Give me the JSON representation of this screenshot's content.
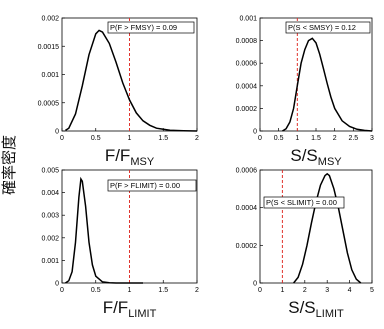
{
  "y_axis_label": "確率密度",
  "chart_data": [
    {
      "type": "line",
      "title": "",
      "xlabel_main": "F/F",
      "xlabel_sub": "MSY",
      "xlim": [
        0,
        2
      ],
      "ylim": [
        0,
        0.002
      ],
      "x_ticks": [
        "0",
        "0.5",
        "1",
        "1.5",
        "2"
      ],
      "y_ticks": [
        "0",
        "0.0005",
        "0.001",
        "0.0015",
        "0.002"
      ],
      "reference_x": 1,
      "annotation": "P(F > FMSY) = 0.09",
      "series": [
        {
          "x": [
            0.05,
            0.1,
            0.2,
            0.3,
            0.4,
            0.5,
            0.55,
            0.6,
            0.7,
            0.8,
            0.9,
            1.0,
            1.1,
            1.2,
            1.3,
            1.4,
            1.5,
            1.6,
            1.8,
            2.0
          ],
          "y": [
            1e-05,
            5e-05,
            0.0003,
            0.0008,
            0.00135,
            0.00172,
            0.00178,
            0.00175,
            0.00155,
            0.00122,
            0.00085,
            0.00055,
            0.00032,
            0.00018,
            0.0001,
            5e-05,
            3e-05,
            1.5e-05,
            5e-06,
            0.0
          ]
        }
      ]
    },
    {
      "type": "line",
      "title": "",
      "xlabel_main": "S/S",
      "xlabel_sub": "MSY",
      "xlim": [
        0,
        3
      ],
      "ylim": [
        0,
        0.001
      ],
      "x_ticks": [
        "0",
        "0.5",
        "1",
        "1.5",
        "2",
        "2.5",
        "3"
      ],
      "y_ticks": [
        "0",
        "0.0002",
        "0.0004",
        "0.0006",
        "0.0008",
        "0.001"
      ],
      "reference_x": 1,
      "annotation": "P(S < SMSY) = 0.12",
      "series": [
        {
          "x": [
            0.6,
            0.7,
            0.8,
            0.9,
            1.0,
            1.1,
            1.2,
            1.3,
            1.4,
            1.5,
            1.6,
            1.7,
            1.8,
            1.9,
            2.0,
            2.2,
            2.4,
            2.6,
            2.8,
            3.0
          ],
          "y": [
            0.0,
            2e-05,
            8e-05,
            0.0002,
            0.0004,
            0.0006,
            0.00072,
            0.0008,
            0.00082,
            0.00078,
            0.00068,
            0.00055,
            0.00042,
            0.0003,
            0.0002,
            9e-05,
            4e-05,
            1.5e-05,
            5e-06,
            0.0
          ]
        }
      ]
    },
    {
      "type": "line",
      "title": "",
      "xlabel_main": "F/F",
      "xlabel_sub": "LIMIT",
      "xlim": [
        0,
        2
      ],
      "ylim": [
        0,
        0.005
      ],
      "x_ticks": [
        "0",
        "0.5",
        "1",
        "1.5",
        "2"
      ],
      "y_ticks": [
        "0",
        "0.001",
        "0.002",
        "0.003",
        "0.004",
        "0.005"
      ],
      "reference_x": 1,
      "annotation": "P(F > FLIMIT) = 0.00",
      "series": [
        {
          "x": [
            0.05,
            0.1,
            0.15,
            0.2,
            0.25,
            0.28,
            0.3,
            0.35,
            0.4,
            0.45,
            0.5,
            0.6,
            0.7,
            0.8,
            1.0,
            1.2
          ],
          "y": [
            0.0,
            0.0001,
            0.0005,
            0.0018,
            0.0038,
            0.0046,
            0.0045,
            0.0034,
            0.0018,
            0.0008,
            0.0003,
            5e-05,
            1e-05,
            0.0,
            0.0,
            0.0
          ]
        }
      ]
    },
    {
      "type": "line",
      "title": "",
      "xlabel_main": "S/S",
      "xlabel_sub": "LIMIT",
      "xlim": [
        0,
        5
      ],
      "ylim": [
        0,
        0.0006
      ],
      "x_ticks": [
        "0",
        "1",
        "2",
        "3",
        "4",
        "5"
      ],
      "y_ticks": [
        "0",
        "0.0002",
        "0.0004",
        "0.0006"
      ],
      "reference_x": 1,
      "annotation": "P(S < SLIMIT) = 0.00",
      "series": [
        {
          "x": [
            1.5,
            1.7,
            1.9,
            2.1,
            2.3,
            2.5,
            2.7,
            2.9,
            3.0,
            3.1,
            3.3,
            3.5,
            3.7,
            3.9,
            4.1,
            4.3,
            4.5
          ],
          "y": [
            0.0,
            3e-05,
            0.0001,
            0.0002,
            0.00032,
            0.00043,
            0.00052,
            0.00057,
            0.00058,
            0.00057,
            0.0005,
            0.0004,
            0.00028,
            0.00016,
            7e-05,
            2e-05,
            0.0
          ]
        }
      ]
    }
  ]
}
